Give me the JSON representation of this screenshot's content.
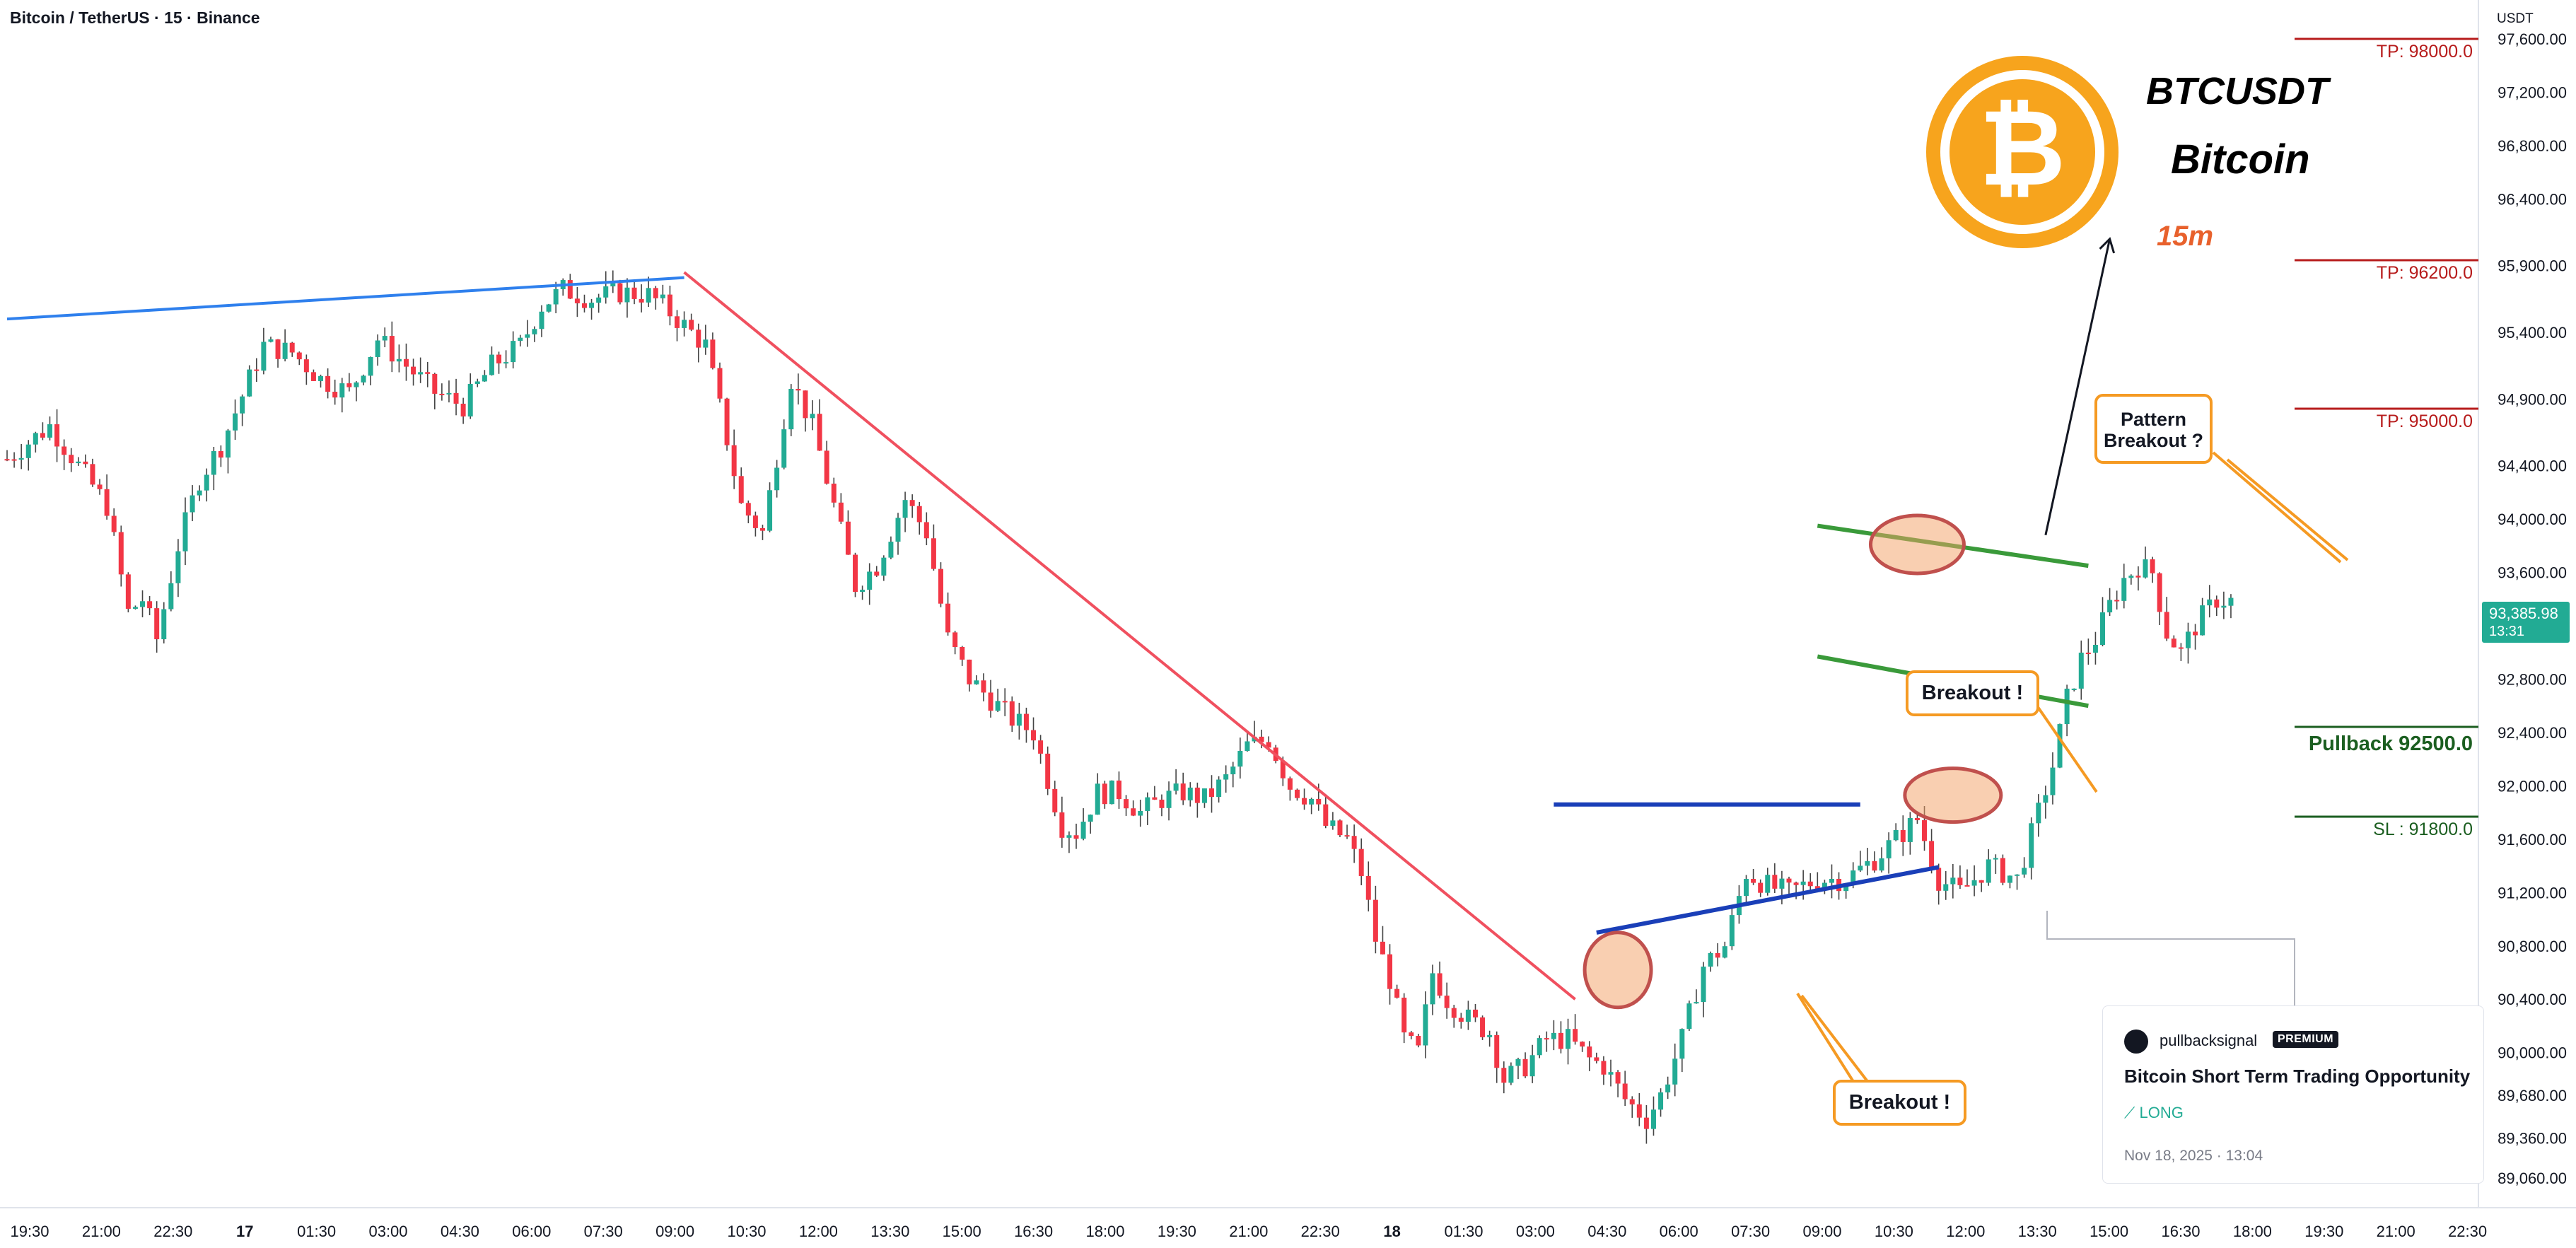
{
  "header": {
    "title": "Bitcoin / TetherUS · 15 · Binance"
  },
  "price_axis": {
    "currency": "USDT"
  },
  "quote": {
    "price": "93,385.98",
    "timer": "13:31"
  },
  "branding": {
    "symbol": "BTCUSDT",
    "name": "Bitcoin",
    "timeframe": "15m",
    "logo_glyph": "₿",
    "logo_color": "#f7a41d"
  },
  "levels": {
    "tp1": "TP: 98000.0",
    "tp2": "TP: 96200.0",
    "tp3": "TP: 95000.0",
    "pullback": "Pullback 92500.0",
    "sl": "SL : 91800.0"
  },
  "callouts": {
    "pattern": [
      "Pattern",
      "Breakout ?"
    ],
    "breakout_mid": "Breakout !",
    "breakout_low": "Breakout !"
  },
  "card": {
    "user": "pullbacksignal",
    "badge": "PREMIUM",
    "title": "Bitcoin Short Term Trading Opportunity",
    "direction": "LONG",
    "date": "Nov 18, 2025 · 13:04"
  },
  "colors": {
    "up": "#22ab94",
    "down": "#f23645",
    "level_red": "#b71c1c",
    "level_green": "#1b5e20"
  },
  "chart_data": {
    "type": "candlestick",
    "y_ticks": [
      89060,
      89360,
      89680,
      90000,
      90400,
      90800,
      91200,
      91600,
      92000,
      92400,
      92800,
      93200,
      93600,
      94000,
      94400,
      94900,
      95400,
      95900,
      96400,
      96800,
      97200,
      97600
    ],
    "y_tick_labels": [
      "89,060.00",
      "89,360.00",
      "89,680.00",
      "90,000.00",
      "90,400.00",
      "90,800.00",
      "91,200.00",
      "91,600.00",
      "92,000.00",
      "92,400.00",
      "92,800.00",
      "93,200.00",
      "93,600.00",
      "94,000.00",
      "94,400.00",
      "94,900.00",
      "95,400.00",
      "95,900.00",
      "96,400.00",
      "96,800.00",
      "97,200.00",
      "97,600.00"
    ],
    "ylim": [
      88900,
      98100
    ],
    "x_tick_labels": [
      "19:30",
      "21:00",
      "22:30",
      "17",
      "01:30",
      "03:00",
      "04:30",
      "06:00",
      "07:30",
      "09:00",
      "10:30",
      "12:00",
      "13:30",
      "15:00",
      "16:30",
      "18:00",
      "19:30",
      "21:00",
      "22:30",
      "18",
      "01:30",
      "03:00",
      "04:30",
      "06:00",
      "07:30",
      "09:00",
      "10:30",
      "12:00",
      "13:30",
      "15:00",
      "16:30",
      "18:00",
      "19:30",
      "21:00",
      "22:30"
    ],
    "x_bold": [
      "17",
      "18"
    ],
    "close_path": [
      [
        0,
        94450
      ],
      [
        6,
        94700
      ],
      [
        10,
        94400
      ],
      [
        14,
        94100
      ],
      [
        17,
        93300
      ],
      [
        19,
        93400
      ],
      [
        21,
        93100
      ],
      [
        24,
        93800
      ],
      [
        27,
        94300
      ],
      [
        30,
        94550
      ],
      [
        32,
        94800
      ],
      [
        36,
        95300
      ],
      [
        40,
        95250
      ],
      [
        44,
        95050
      ],
      [
        48,
        94950
      ],
      [
        52,
        95350
      ],
      [
        56,
        95150
      ],
      [
        60,
        94950
      ],
      [
        64,
        94850
      ],
      [
        68,
        95150
      ],
      [
        72,
        95300
      ],
      [
        75,
        95600
      ],
      [
        78,
        95720
      ],
      [
        82,
        95650
      ],
      [
        86,
        95700
      ],
      [
        90,
        95680
      ],
      [
        92,
        95600
      ],
      [
        95,
        95450
      ],
      [
        98,
        95300
      ],
      [
        101,
        94600
      ],
      [
        103,
        94100
      ],
      [
        106,
        93900
      ],
      [
        110,
        95050
      ],
      [
        113,
        94700
      ],
      [
        116,
        94100
      ],
      [
        119,
        93500
      ],
      [
        122,
        93650
      ],
      [
        126,
        94150
      ],
      [
        129,
        93900
      ],
      [
        132,
        93100
      ],
      [
        135,
        92800
      ],
      [
        138,
        92650
      ],
      [
        141,
        92500
      ],
      [
        144,
        92400
      ],
      [
        146,
        92050
      ],
      [
        148,
        91700
      ],
      [
        150,
        91650
      ],
      [
        153,
        91950
      ],
      [
        156,
        91950
      ],
      [
        159,
        91800
      ],
      [
        162,
        91900
      ],
      [
        165,
        91950
      ],
      [
        168,
        91900
      ],
      [
        171,
        92050
      ],
      [
        174,
        92300
      ],
      [
        177,
        92350
      ],
      [
        180,
        92000
      ],
      [
        183,
        91900
      ],
      [
        185,
        91700
      ],
      [
        188,
        91600
      ],
      [
        190,
        91350
      ],
      [
        192,
        90850
      ],
      [
        194,
        90550
      ],
      [
        196,
        90100
      ],
      [
        198,
        90000
      ],
      [
        200,
        90600
      ],
      [
        202,
        90400
      ],
      [
        205,
        90250
      ],
      [
        208,
        90150
      ],
      [
        210,
        89800
      ],
      [
        213,
        89900
      ],
      [
        216,
        90100
      ],
      [
        219,
        90100
      ],
      [
        222,
        89950
      ],
      [
        224,
        89900
      ],
      [
        227,
        89650
      ],
      [
        230,
        89500
      ],
      [
        232,
        89680
      ],
      [
        235,
        90100
      ],
      [
        238,
        90650
      ],
      [
        241,
        90800
      ],
      [
        244,
        91350
      ],
      [
        247,
        91250
      ],
      [
        250,
        91200
      ],
      [
        254,
        91300
      ],
      [
        258,
        91300
      ],
      [
        262,
        91450
      ],
      [
        265,
        91600
      ],
      [
        268,
        91750
      ],
      [
        271,
        91300
      ],
      [
        274,
        91200
      ],
      [
        278,
        91400
      ],
      [
        282,
        91300
      ],
      [
        285,
        91800
      ],
      [
        287,
        92150
      ],
      [
        289,
        92650
      ],
      [
        291,
        92950
      ],
      [
        293,
        93100
      ],
      [
        295,
        93350
      ],
      [
        297,
        93550
      ],
      [
        299,
        93650
      ],
      [
        301,
        93600
      ],
      [
        303,
        93150
      ],
      [
        305,
        93000
      ],
      [
        307,
        93200
      ],
      [
        310,
        93400
      ],
      [
        312,
        93385.98
      ]
    ],
    "total_bars": 312,
    "blue_trendline": [
      [
        0,
        95500
      ],
      [
        95,
        95810
      ]
    ],
    "red_trendline": [
      [
        95,
        95850
      ],
      [
        220,
        90400
      ]
    ],
    "range_top": [
      [
        217,
        91860
      ],
      [
        260,
        91860
      ]
    ],
    "range_bottom": [
      [
        223,
        90900
      ],
      [
        271,
        91390
      ]
    ],
    "channel_upper": [
      [
        254,
        93950
      ],
      [
        292,
        93650
      ]
    ],
    "channel_lower": [
      [
        254,
        92970
      ],
      [
        292,
        92600
      ]
    ],
    "target_arrow": [
      [
        286,
        93880
      ],
      [
        295,
        96100
      ]
    ]
  }
}
